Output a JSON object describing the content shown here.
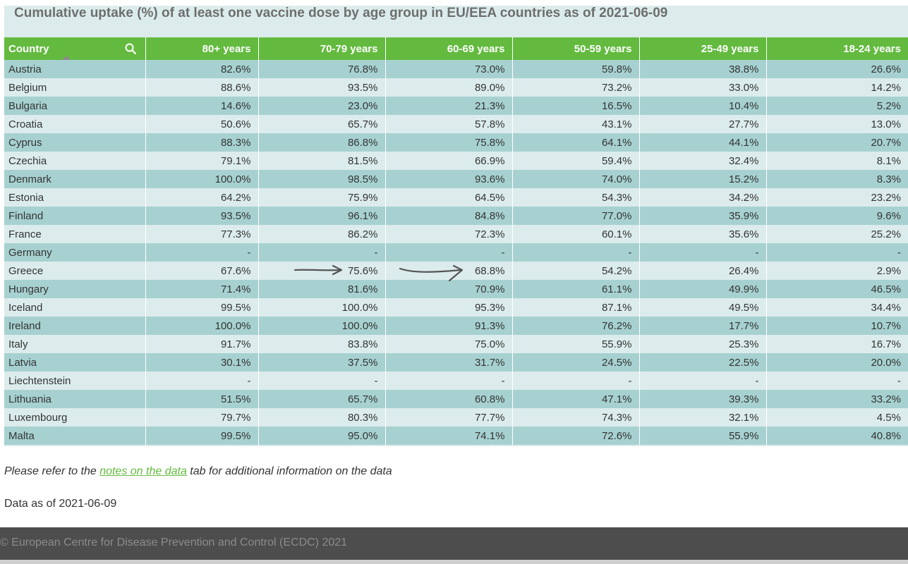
{
  "title": "Cumulative uptake (%) of at least one vaccine dose by age group in EU/EEA countries as of 2021-06-09",
  "table": {
    "columns": [
      "Country",
      "80+ years",
      "70-79 years",
      "60-69 years",
      "50-59 years",
      "25-49 years",
      "18-24 years"
    ],
    "icons": {
      "search": "search-icon",
      "sort": "sort-ascending-icon"
    },
    "rows": [
      [
        "Austria",
        "82.6%",
        "76.8%",
        "73.0%",
        "59.8%",
        "38.8%",
        "26.6%"
      ],
      [
        "Belgium",
        "88.6%",
        "93.5%",
        "89.0%",
        "73.2%",
        "33.0%",
        "14.2%"
      ],
      [
        "Bulgaria",
        "14.6%",
        "23.0%",
        "21.3%",
        "16.5%",
        "10.4%",
        "5.2%"
      ],
      [
        "Croatia",
        "50.6%",
        "65.7%",
        "57.8%",
        "43.1%",
        "27.7%",
        "13.0%"
      ],
      [
        "Cyprus",
        "88.3%",
        "86.8%",
        "75.8%",
        "64.1%",
        "44.1%",
        "20.7%"
      ],
      [
        "Czechia",
        "79.1%",
        "81.5%",
        "66.9%",
        "59.4%",
        "32.4%",
        "8.1%"
      ],
      [
        "Denmark",
        "100.0%",
        "98.5%",
        "93.6%",
        "74.0%",
        "15.2%",
        "8.3%"
      ],
      [
        "Estonia",
        "64.2%",
        "75.9%",
        "64.5%",
        "54.3%",
        "34.2%",
        "23.2%"
      ],
      [
        "Finland",
        "93.5%",
        "96.1%",
        "84.8%",
        "77.0%",
        "35.9%",
        "9.6%"
      ],
      [
        "France",
        "77.3%",
        "86.2%",
        "72.3%",
        "60.1%",
        "35.6%",
        "25.2%"
      ],
      [
        "Germany",
        "-",
        "-",
        "-",
        "-",
        "-",
        "-"
      ],
      [
        "Greece",
        "67.6%",
        "75.6%",
        "68.8%",
        "54.2%",
        "26.4%",
        "2.9%"
      ],
      [
        "Hungary",
        "71.4%",
        "81.6%",
        "70.9%",
        "61.1%",
        "49.9%",
        "46.5%"
      ],
      [
        "Iceland",
        "99.5%",
        "100.0%",
        "95.3%",
        "87.1%",
        "49.5%",
        "34.4%"
      ],
      [
        "Ireland",
        "100.0%",
        "100.0%",
        "91.3%",
        "76.2%",
        "17.7%",
        "10.7%"
      ],
      [
        "Italy",
        "91.7%",
        "83.8%",
        "75.0%",
        "55.9%",
        "25.3%",
        "16.7%"
      ],
      [
        "Latvia",
        "30.1%",
        "37.5%",
        "31.7%",
        "24.5%",
        "22.5%",
        "20.0%"
      ],
      [
        "Liechtenstein",
        "-",
        "-",
        "-",
        "-",
        "-",
        "-"
      ],
      [
        "Lithuania",
        "51.5%",
        "65.7%",
        "60.8%",
        "47.1%",
        "39.3%",
        "33.2%"
      ],
      [
        "Luxembourg",
        "79.7%",
        "80.3%",
        "77.7%",
        "74.3%",
        "32.1%",
        "4.5%"
      ],
      [
        "Malta",
        "99.5%",
        "95.0%",
        "74.1%",
        "72.6%",
        "55.9%",
        "40.8%"
      ]
    ]
  },
  "annotations": [
    "hand-drawn-arrow-icon",
    "hand-drawn-arrow-icon"
  ],
  "note": {
    "prefix": "Please refer to the ",
    "link": "notes on the data",
    "suffix": " tab for additional information on the data"
  },
  "data_as_of": "Data as of 2021-06-09",
  "footer": {
    "copyright": "© European Centre for Disease Prevention and Control (ECDC) 2021"
  },
  "colors": {
    "header_bg": "#63ba3f",
    "row_odd": "#a7d1d1",
    "row_even": "#dcecec",
    "link": "#63ba3f",
    "footer_bg": "#4d4d4d"
  }
}
